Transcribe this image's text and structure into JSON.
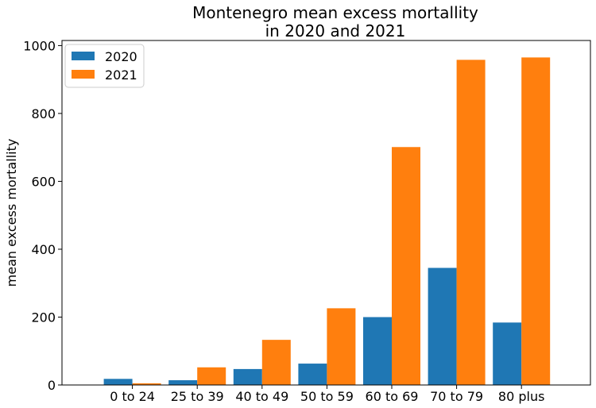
{
  "chart_data": {
    "type": "bar",
    "title_lines": [
      "Montenegro mean excess mortallity",
      "in 2020 and 2021"
    ],
    "xlabel": "",
    "ylabel": "mean excess mortallity",
    "categories": [
      "0 to 24",
      "25 to 39",
      "40 to 49",
      "50 to 59",
      "60 to 69",
      "70 to 79",
      "80 plus"
    ],
    "series": [
      {
        "name": "2020",
        "color": "#1f77b4",
        "values": [
          18,
          14,
          47,
          63,
          200,
          345,
          184
        ]
      },
      {
        "name": "2021",
        "color": "#ff7f0e",
        "values": [
          5,
          52,
          133,
          226,
          701,
          958,
          965
        ]
      }
    ],
    "ylim": [
      0,
      1015
    ],
    "yticks": [
      0,
      200,
      400,
      600,
      800,
      1000
    ],
    "grid": false,
    "legend": "top-left"
  }
}
